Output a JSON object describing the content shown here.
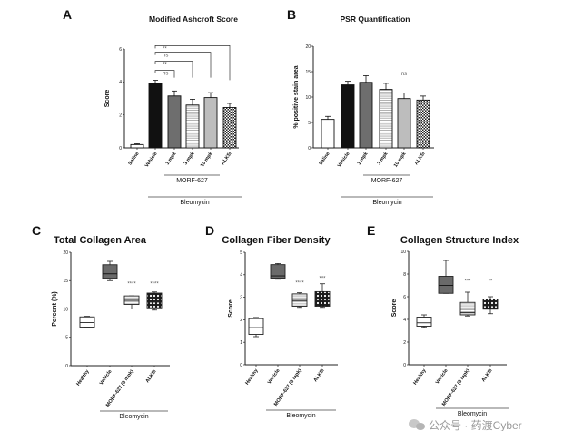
{
  "chart_data": [
    {
      "panel": "A",
      "type": "bar",
      "title": "Modified Ashcroft Score",
      "ylabel": "Score",
      "xlabel": "",
      "ylim": [
        0,
        6
      ],
      "yticks": [
        0,
        2,
        4,
        6
      ],
      "categories": [
        "Saline",
        "Vehicle",
        "1 mpk",
        "3 mpk",
        "10 mpk",
        "ALK5i"
      ],
      "values": [
        0.2,
        3.9,
        3.15,
        2.6,
        3.05,
        2.45
      ],
      "errors": [
        0.05,
        0.2,
        0.3,
        0.35,
        0.3,
        0.25
      ],
      "fills": [
        "white",
        "black",
        "dark",
        "stripes",
        "light",
        "checker"
      ],
      "comparisons": [
        {
          "from": "Vehicle",
          "to": "1 mpk",
          "label": "ns",
          "level": 4.7
        },
        {
          "from": "Vehicle",
          "to": "3 mpk",
          "label": "**",
          "level": 5.25
        },
        {
          "from": "Vehicle",
          "to": "10 mpk",
          "label": "ns",
          "level": 5.8
        },
        {
          "from": "Vehicle",
          "to": "ALK5i",
          "label": "**",
          "level": 6.2
        }
      ],
      "groups": [
        {
          "label": "MORF-627",
          "span": [
            "1 mpk",
            "10 mpk"
          ]
        },
        {
          "label": "Bleomycin",
          "span": [
            "Vehicle",
            "ALK5i"
          ]
        }
      ]
    },
    {
      "panel": "B",
      "type": "bar",
      "title": "PSR Quantification",
      "ylabel": "% positive stain area",
      "xlabel": "",
      "ylim": [
        0,
        20
      ],
      "yticks": [
        0,
        5,
        10,
        15,
        20
      ],
      "categories": [
        "Saline",
        "Vehicle",
        "1 mpk",
        "3 mpk",
        "10 mpk",
        "ALK5i"
      ],
      "values": [
        5.6,
        12.4,
        12.9,
        11.5,
        9.7,
        9.4
      ],
      "errors": [
        0.6,
        0.7,
        1.3,
        1.2,
        1.1,
        0.8
      ],
      "fills": [
        "white",
        "black",
        "dark",
        "stripes",
        "light",
        "checker"
      ],
      "annotations": [
        {
          "category": "10 mpk",
          "label": "ns",
          "y": 14.6
        }
      ],
      "groups": [
        {
          "label": "MORF-627",
          "span": [
            "1 mpk",
            "10 mpk"
          ]
        },
        {
          "label": "Bleomycin",
          "span": [
            "Vehicle",
            "ALK5i"
          ]
        }
      ]
    },
    {
      "panel": "C",
      "type": "box",
      "title": "Total Collagen Area",
      "ylabel": "Percent (%)",
      "xlabel": "",
      "ylim": [
        0,
        20
      ],
      "yticks": [
        0,
        5,
        10,
        15,
        20
      ],
      "categories": [
        "Healthy",
        "Vehicle",
        "MORF-627 (3 mpk)",
        "ALK5i"
      ],
      "boxes": [
        {
          "min": 6.8,
          "q1": 6.8,
          "median": 7.6,
          "q3": 8.6,
          "max": 8.7
        },
        {
          "min": 15.0,
          "q1": 15.4,
          "median": 16.2,
          "q3": 17.8,
          "max": 18.4
        },
        {
          "min": 10.0,
          "q1": 10.8,
          "median": 11.5,
          "q3": 12.3,
          "max": 12.3
        },
        {
          "min": 9.8,
          "q1": 10.2,
          "median": 11.2,
          "q3": 12.8,
          "max": 13.0
        }
      ],
      "fills": [
        "white",
        "dark",
        "stripes",
        "dots"
      ],
      "annotations": [
        {
          "category": "MORF-627 (3 mpk)",
          "label": "****",
          "y": 14.5
        },
        {
          "category": "ALK5i",
          "label": "****",
          "y": 14.5
        }
      ],
      "groups": [
        {
          "label": "Bleomycin",
          "span": [
            "Vehicle",
            "ALK5i"
          ]
        }
      ]
    },
    {
      "panel": "D",
      "type": "box",
      "title": "Collagen Fiber Density",
      "ylabel": "Score",
      "xlabel": "",
      "ylim": [
        0,
        5
      ],
      "yticks": [
        0,
        1,
        2,
        3,
        4,
        5
      ],
      "categories": [
        "Healthy",
        "Vehicle",
        "MORF-627 (3 mpk)",
        "ALK5i"
      ],
      "boxes": [
        {
          "min": 1.25,
          "q1": 1.35,
          "median": 1.65,
          "q3": 2.05,
          "max": 2.1
        },
        {
          "min": 3.8,
          "q1": 3.85,
          "median": 3.95,
          "q3": 4.45,
          "max": 4.5
        },
        {
          "min": 2.55,
          "q1": 2.6,
          "median": 2.85,
          "q3": 3.15,
          "max": 3.2
        },
        {
          "min": 2.55,
          "q1": 2.6,
          "median": 2.85,
          "q3": 3.25,
          "max": 3.6
        }
      ],
      "fills": [
        "white",
        "dark",
        "stripes",
        "dots"
      ],
      "annotations": [
        {
          "category": "MORF-627 (3 mpk)",
          "label": "****",
          "y": 3.65
        },
        {
          "category": "ALK5i",
          "label": "***",
          "y": 3.85
        }
      ],
      "groups": [
        {
          "label": "Bleomycin",
          "span": [
            "Vehicle",
            "ALK5i"
          ]
        }
      ]
    },
    {
      "panel": "E",
      "type": "box",
      "title": "Collagen Structure Index",
      "ylabel": "Score",
      "xlabel": "",
      "ylim": [
        0,
        10
      ],
      "yticks": [
        0,
        2,
        4,
        6,
        8,
        10
      ],
      "categories": [
        "Healthy",
        "Vehicle",
        "MORF-627 (3 mpk)",
        "ALK5i"
      ],
      "boxes": [
        {
          "min": 3.3,
          "q1": 3.4,
          "median": 3.7,
          "q3": 4.2,
          "max": 4.4
        },
        {
          "min": 6.3,
          "q1": 6.3,
          "median": 7.0,
          "q3": 7.8,
          "max": 9.2
        },
        {
          "min": 4.3,
          "q1": 4.4,
          "median": 4.6,
          "q3": 5.5,
          "max": 6.4
        },
        {
          "min": 4.5,
          "q1": 4.9,
          "median": 5.2,
          "q3": 5.8,
          "max": 6.0
        }
      ],
      "fills": [
        "white",
        "dark",
        "stripes",
        "dots"
      ],
      "annotations": [
        {
          "category": "MORF-627 (3 mpk)",
          "label": "***",
          "y": 7.4
        },
        {
          "category": "ALK5i",
          "label": "**",
          "y": 7.4
        }
      ],
      "groups": [
        {
          "label": "Bleomycin",
          "span": [
            "Vehicle",
            "ALK5i"
          ]
        }
      ]
    }
  ],
  "watermark": "公众号 · 药渡Cyber",
  "colors": {
    "black": "#111111",
    "dark": "#6e6e6e",
    "light": "#bdbdbd",
    "box_dark": "#6a6a6a",
    "axis": "#222222"
  }
}
